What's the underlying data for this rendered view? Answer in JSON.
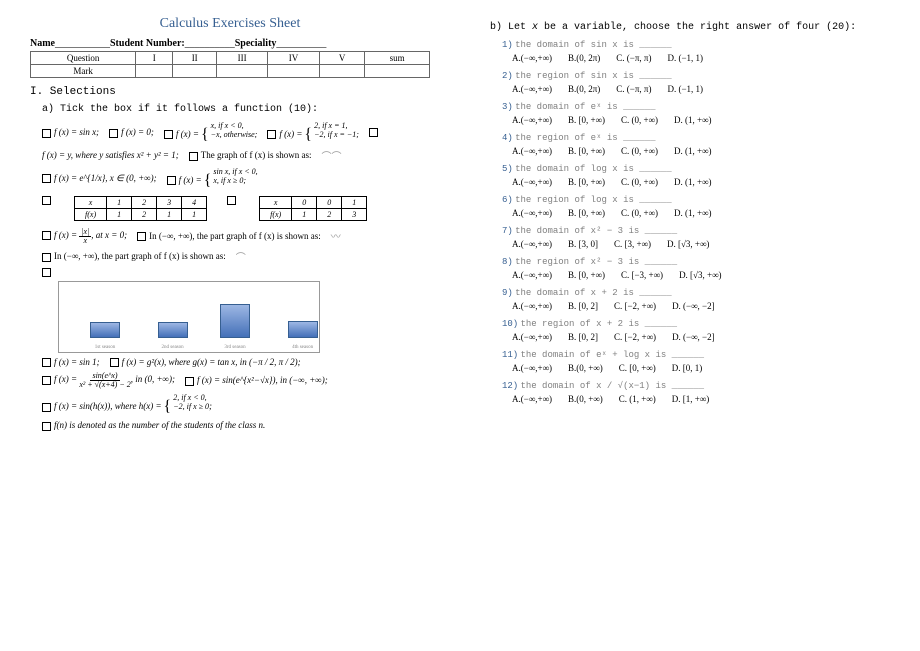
{
  "title": "Calculus Exercises Sheet",
  "header": {
    "name_lbl": "Name",
    "num_lbl": "Student Number:",
    "spec_lbl": "Speciality"
  },
  "score": {
    "rows": [
      "Question",
      "Mark"
    ],
    "cols": [
      "I",
      "II",
      "III",
      "IV",
      "V",
      "sum"
    ]
  },
  "sec1": "I. Selections",
  "sec1a": "a) Tick the box if it follows a function (10):",
  "l1": {
    "a": "f (x) = sin x;",
    "b": "f (x) = 0;",
    "c1": "f (x) =",
    "c2": "x,  if x < 0,",
    "c3": "−x, otherwise;",
    "d1": "f (x) =",
    "d2": "2,  if x = 1,",
    "d3": "−2, if x = −1;"
  },
  "l2": {
    "a": "f (x) = y, where y satisfies x² + y² = 1;",
    "b": "The graph of f (x) is shown as:"
  },
  "l3": {
    "a": "f (x) = e^{1/x}, x ∈ (0, +∞);",
    "b1": "f (x) =",
    "b2": "sin x,  if x < 0,",
    "b3": "x,     if x ≥ 0;"
  },
  "t1": {
    "h": [
      "x",
      "1",
      "2",
      "3",
      "4"
    ],
    "r": [
      "f(x)",
      "1",
      "2",
      "1",
      "1"
    ]
  },
  "t2": {
    "h": [
      "x",
      "0",
      "0",
      "1"
    ],
    "r": [
      "f(x)",
      "1",
      "2",
      "3"
    ]
  },
  "l4": {
    "a": "f (x) =",
    "frac_n": "|x|",
    "frac_d": "x",
    "b": ",  at x = 0;",
    "c": "In (−∞, +∞), the part graph of f (x) is shown as:"
  },
  "l5": "In (−∞, +∞), the part graph of f (x) is shown as:",
  "chart": {
    "bars": [
      [
        "12%",
        14
      ],
      [
        "38%",
        14
      ],
      [
        "62%",
        32
      ],
      [
        "88%",
        15
      ]
    ],
    "labels": [
      "1st season",
      "2nd season",
      "3rd season",
      "4th season"
    ],
    "bg": "#ffffff",
    "bar_color": "#5b84c4"
  },
  "l6": {
    "a": "f (x) = sin 1;",
    "b": "f (x) = g²(x),  where  g(x) = tan x,  in (−π / 2, π / 2);"
  },
  "l7": {
    "a": "f (x) =",
    "num": "sin(e^x)",
    "den": "x² + √(x+4) − 2",
    "b": ",  in (0, +∞);",
    "c": "f (x) = sin(e^{x²−√x}),  in (−∞, +∞);"
  },
  "l8": {
    "a": "f (x) = sin(h(x)),  where  h(x) =",
    "b": "2, if x < 0,",
    "c": "−2, if x ≥ 0",
    "d": ";"
  },
  "l9": "f(n) is denoted as the number of the students of the class n.",
  "sec1b": "b) Let x be a variable, choose the right answer of four (20):",
  "questions": [
    {
      "n": "1)",
      "t": "the domain of  sin x  is ______",
      "o": [
        "A.(−∞,+∞)",
        "B.(0, 2π)",
        "C. (−π, π)",
        "D. (−1, 1)"
      ]
    },
    {
      "n": "2)",
      "t": "the region of  sin x  is ______",
      "o": [
        "A.(−∞,+∞)",
        "B.(0, 2π)",
        "C. (−π, π)",
        "D. (−1, 1)"
      ]
    },
    {
      "n": "3)",
      "t": "the domain of  eˣ  is ______",
      "o": [
        "A.(−∞,+∞)",
        "B. [0, +∞)",
        "C. (0, +∞)",
        "D. (1, +∞)"
      ]
    },
    {
      "n": "4)",
      "t": "the region of  eˣ  is ______",
      "o": [
        "A.(−∞,+∞)",
        "B. [0, +∞)",
        "C. (0, +∞)",
        "D. (1, +∞)"
      ]
    },
    {
      "n": "5)",
      "t": "the domain of  log x  is ______",
      "o": [
        "A.(−∞,+∞)",
        "B. [0, +∞)",
        "C. (0, +∞)",
        "D. (1, +∞)"
      ]
    },
    {
      "n": "6)",
      "t": "the region of  log x  is ______",
      "o": [
        "A.(−∞,+∞)",
        "B. [0, +∞)",
        "C. (0, +∞)",
        "D. (1, +∞)"
      ]
    },
    {
      "n": "7)",
      "t": "the domain of  x² − 3  is ______",
      "o": [
        "A.(−∞,+∞)",
        "B. [3, 0]",
        "C. [3, +∞)",
        "D. [√3, +∞)"
      ]
    },
    {
      "n": "8)",
      "t": "the region of  x² − 3  is ______",
      "o": [
        "A.(−∞,+∞)",
        "B. [0, +∞)",
        "C. [−3, +∞)",
        "D. [√3, +∞)"
      ]
    },
    {
      "n": "9)",
      "t": "the domain of  x + 2  is ______",
      "o": [
        "A.(−∞,+∞)",
        "B. [0, 2]",
        "C. [−2, +∞)",
        "D. (−∞, −2]"
      ]
    },
    {
      "n": "10)",
      "t": "the region of  x + 2  is ______",
      "o": [
        "A.(−∞,+∞)",
        "B. [0, 2]",
        "C. [−2, +∞)",
        "D. (−∞, −2]"
      ]
    },
    {
      "n": "11)",
      "t": "the domain of  eˣ + log x  is ______",
      "o": [
        "A.(−∞,+∞)",
        "B.(0, +∞)",
        "C. [0, +∞)",
        "D. [0, 1)"
      ]
    },
    {
      "n": "12)",
      "t": "the domain of  x / √(x−1)  is ______",
      "o": [
        "A.(−∞,+∞)",
        "B.(0, +∞)",
        "C. (1, +∞)",
        "D. [1, +∞)"
      ]
    }
  ]
}
